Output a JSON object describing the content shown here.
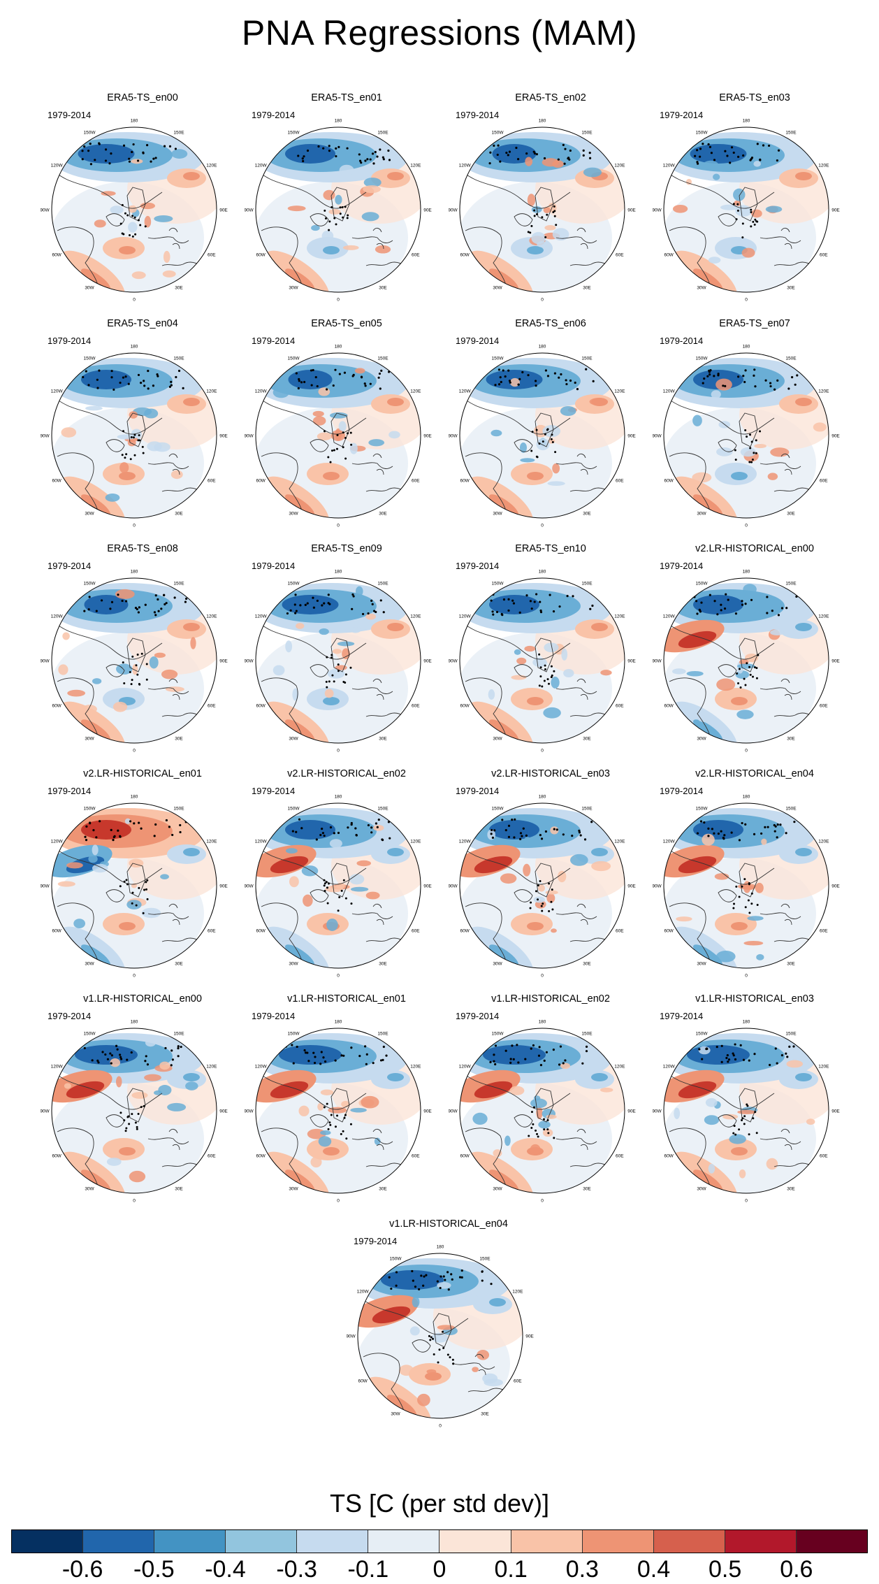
{
  "title": "PNA Regressions (MAM)",
  "period": "1979-2014",
  "longitude_labels": [
    "180",
    "150E",
    "120E",
    "90E",
    "60E",
    "30E",
    "0",
    "30W",
    "60W",
    "90W",
    "120W",
    "150W"
  ],
  "panels": [
    {
      "label": "ERA5-TS_en00"
    },
    {
      "label": "ERA5-TS_en01"
    },
    {
      "label": "ERA5-TS_en02"
    },
    {
      "label": "ERA5-TS_en03"
    },
    {
      "label": "ERA5-TS_en04"
    },
    {
      "label": "ERA5-TS_en05"
    },
    {
      "label": "ERA5-TS_en06"
    },
    {
      "label": "ERA5-TS_en07"
    },
    {
      "label": "ERA5-TS_en08"
    },
    {
      "label": "ERA5-TS_en09"
    },
    {
      "label": "ERA5-TS_en10"
    },
    {
      "label": "v2.LR-HISTORICAL_en00"
    },
    {
      "label": "v2.LR-HISTORICAL_en01"
    },
    {
      "label": "v2.LR-HISTORICAL_en02"
    },
    {
      "label": "v2.LR-HISTORICAL_en03"
    },
    {
      "label": "v2.LR-HISTORICAL_en04"
    },
    {
      "label": "v1.LR-HISTORICAL_en00"
    },
    {
      "label": "v1.LR-HISTORICAL_en01"
    },
    {
      "label": "v1.LR-HISTORICAL_en02"
    },
    {
      "label": "v1.LR-HISTORICAL_en03"
    },
    {
      "label": "v1.LR-HISTORICAL_en04"
    }
  ],
  "colorbar": {
    "title": "TS [C (per std dev)]",
    "labels": [
      "-0.6",
      "-0.5",
      "-0.4",
      "-0.3",
      "-0.1",
      "0",
      "0.1",
      "0.3",
      "0.4",
      "0.5",
      "0.6"
    ],
    "colors": [
      "#053061",
      "#2166ac",
      "#4393c3",
      "#92c5de",
      "#c6dbef",
      "#e6eef5",
      "#fbe5d8",
      "#f9c3a8",
      "#ee9474",
      "#d6604d",
      "#b2182b",
      "#67001f"
    ]
  },
  "palette": {
    "strong_blue": "#2166ac",
    "mid_blue": "#6aaed6",
    "light_blue": "#c6dbef",
    "very_light_blue": "#e6eef5",
    "very_light_red": "#fbe5d8",
    "light_red": "#f9c3a8",
    "mid_red": "#ee9474",
    "strong_red": "#c7382c",
    "land_outline": "#333333"
  }
}
